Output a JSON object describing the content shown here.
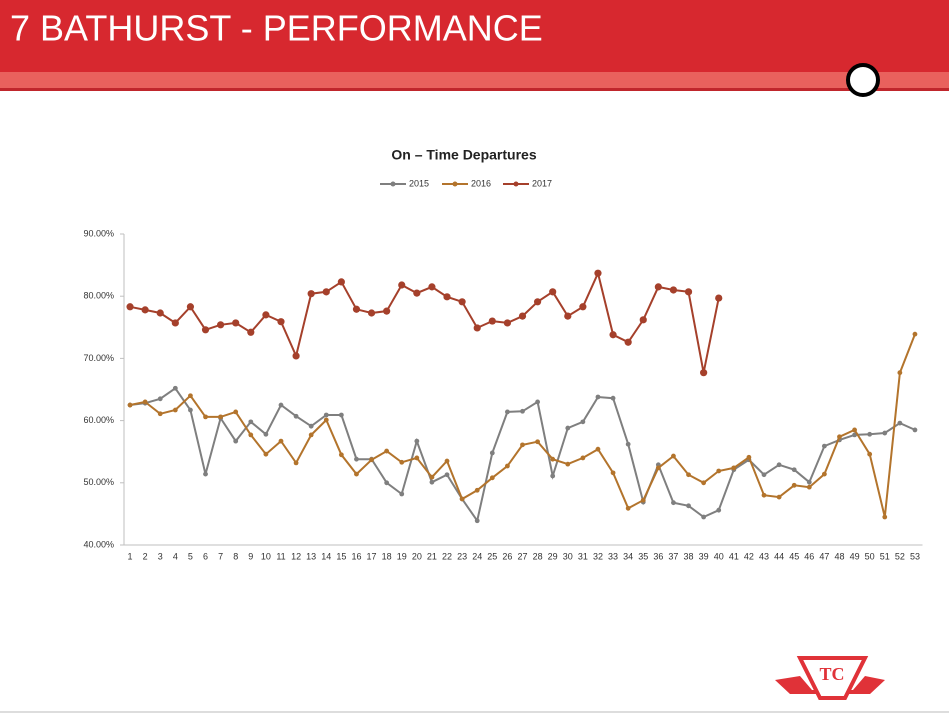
{
  "header": {
    "title": "7 BATHURST - PERFORMANCE"
  },
  "chart_data": {
    "type": "line",
    "title": "On – Time Departures",
    "categories": [
      "1",
      "2",
      "3",
      "4",
      "5",
      "6",
      "7",
      "8",
      "9",
      "10",
      "11",
      "12",
      "13",
      "14",
      "15",
      "16",
      "17",
      "18",
      "19",
      "20",
      "21",
      "22",
      "23",
      "24",
      "25",
      "26",
      "27",
      "28",
      "29",
      "30",
      "31",
      "32",
      "33",
      "34",
      "35",
      "36",
      "37",
      "38",
      "39",
      "40",
      "41",
      "42",
      "43",
      "44",
      "45",
      "46",
      "47",
      "48",
      "49",
      "50",
      "51",
      "52",
      "53"
    ],
    "series": [
      {
        "name": "2015",
        "color": "#7f7f7f",
        "values": [
          62.5,
          62.8,
          63.5,
          65.2,
          61.7,
          51.4,
          60.4,
          56.7,
          59.8,
          57.8,
          62.5,
          60.7,
          59.1,
          60.9,
          60.9,
          53.8,
          53.8,
          50.0,
          48.2,
          56.7,
          50.1,
          51.3,
          47.4,
          43.9,
          54.8,
          61.4,
          61.5,
          63.0,
          51.1,
          58.8,
          59.8,
          63.8,
          63.6,
          56.2,
          46.9,
          52.9,
          46.8,
          46.3,
          44.5,
          45.6,
          52.1,
          53.7,
          51.3,
          52.9,
          52.1,
          50.1,
          55.9,
          56.9,
          57.7,
          57.8,
          58.0,
          59.6,
          58.5
        ]
      },
      {
        "name": "2016",
        "color": "#b3742c",
        "values": [
          62.5,
          63.0,
          61.1,
          61.7,
          64.0,
          60.6,
          60.6,
          61.4,
          57.7,
          54.6,
          56.7,
          53.2,
          57.7,
          60.1,
          54.5,
          51.4,
          53.7,
          55.1,
          53.3,
          54.0,
          50.9,
          53.5,
          47.4,
          48.8,
          50.8,
          52.7,
          56.1,
          56.6,
          53.8,
          53.0,
          54.0,
          55.4,
          51.6,
          45.9,
          47.2,
          52.4,
          54.3,
          51.3,
          50.0,
          51.9,
          52.4,
          54.1,
          48.0,
          47.7,
          49.6,
          49.3,
          51.4,
          57.4,
          58.5,
          54.6,
          44.5,
          67.7,
          73.9
        ]
      },
      {
        "name": "2017",
        "color": "#a5402b",
        "values": [
          78.3,
          77.8,
          77.3,
          75.7,
          78.3,
          74.6,
          75.4,
          75.7,
          74.2,
          77.0,
          75.9,
          70.4,
          80.4,
          80.7,
          82.3,
          77.9,
          77.3,
          77.6,
          81.8,
          80.5,
          81.5,
          79.9,
          79.1,
          74.9,
          76.0,
          75.7,
          76.8,
          79.1,
          80.7,
          76.8,
          78.3,
          83.7,
          73.8,
          72.6,
          76.2,
          81.5,
          81.0,
          80.7,
          67.7,
          79.7,
          null,
          null,
          null,
          null,
          null,
          null,
          null,
          null,
          null,
          null,
          null,
          null,
          null
        ]
      }
    ],
    "ylim": [
      40,
      90
    ],
    "yticks": [
      {
        "value": 40,
        "label": "40.00%"
      },
      {
        "value": 50,
        "label": "50.00%"
      },
      {
        "value": 60,
        "label": "60.00%"
      },
      {
        "value": 70,
        "label": "70.00%"
      },
      {
        "value": 80,
        "label": "80.00%"
      },
      {
        "value": 90,
        "label": "90.00%"
      }
    ],
    "grid": false,
    "legend": "top"
  }
}
